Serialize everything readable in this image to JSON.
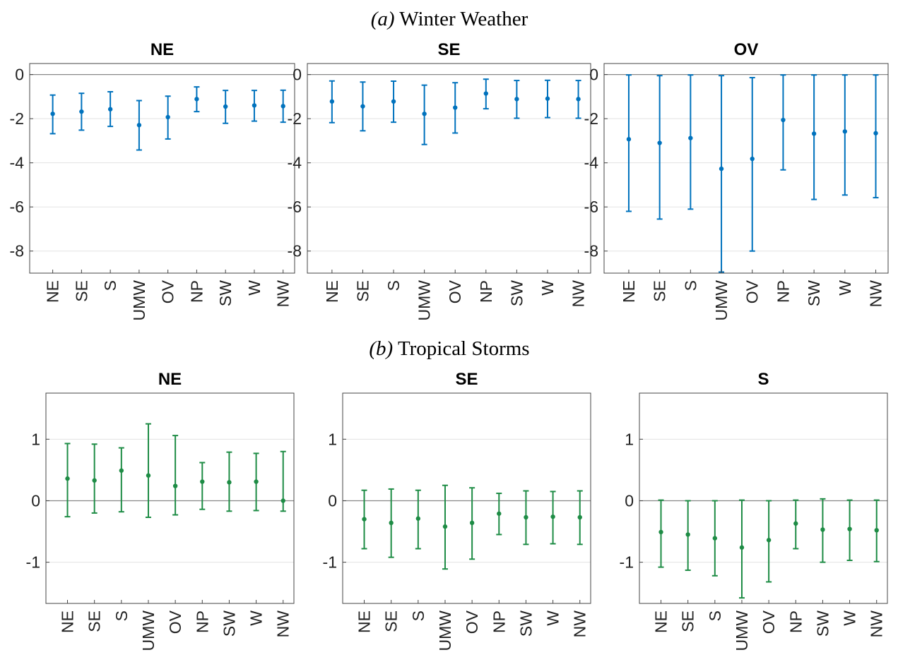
{
  "panels": [
    {
      "title_letter": "(a)",
      "title_text": " Winter Weather"
    },
    {
      "title_letter": "(b)",
      "title_text": " Tropical Storms"
    }
  ],
  "colors": {
    "winter": "#0072BD",
    "tropical": "#1E8C45",
    "grid": "#e3e3e3",
    "zero": "#888888",
    "axis": "#444444"
  },
  "chart_data": [
    {
      "type": "scatter",
      "error_bars": true,
      "group": "Winter Weather",
      "title": "NE",
      "categories": [
        "NE",
        "SE",
        "S",
        "UMW",
        "OV",
        "NP",
        "SW",
        "W",
        "NW"
      ],
      "values": [
        -1.78,
        -1.68,
        -1.57,
        -2.29,
        -1.93,
        -1.11,
        -1.45,
        -1.4,
        -1.43
      ],
      "lower": [
        -2.68,
        -2.52,
        -2.35,
        -3.42,
        -2.92,
        -1.68,
        -2.21,
        -2.11,
        -2.16
      ],
      "upper": [
        -0.93,
        -0.85,
        -0.78,
        -1.18,
        -0.98,
        -0.56,
        -0.72,
        -0.72,
        -0.71
      ],
      "ylim": [
        -9,
        0.5
      ],
      "yticks": [
        0,
        -2,
        -4,
        -6,
        -8
      ],
      "grid": true
    },
    {
      "type": "scatter",
      "error_bars": true,
      "group": "Winter Weather",
      "title": "SE",
      "categories": [
        "NE",
        "SE",
        "S",
        "UMW",
        "OV",
        "NP",
        "SW",
        "W",
        "NW"
      ],
      "values": [
        -1.22,
        -1.44,
        -1.22,
        -1.78,
        -1.5,
        -0.86,
        -1.11,
        -1.09,
        -1.11
      ],
      "lower": [
        -2.18,
        -2.55,
        -2.16,
        -3.17,
        -2.65,
        -1.55,
        -1.98,
        -1.95,
        -1.98
      ],
      "upper": [
        -0.29,
        -0.34,
        -0.3,
        -0.48,
        -0.37,
        -0.21,
        -0.27,
        -0.26,
        -0.27
      ],
      "ylim": [
        -9,
        0.5
      ],
      "yticks": [
        0,
        -2,
        -4,
        -6,
        -8
      ],
      "grid": true
    },
    {
      "type": "scatter",
      "error_bars": true,
      "group": "Winter Weather",
      "title": "OV",
      "categories": [
        "NE",
        "SE",
        "S",
        "UMW",
        "OV",
        "NP",
        "SW",
        "W",
        "NW"
      ],
      "values": [
        -2.93,
        -3.1,
        -2.88,
        -4.27,
        -3.82,
        -2.06,
        -2.68,
        -2.58,
        -2.66
      ],
      "lower": [
        -6.2,
        -6.55,
        -6.1,
        -8.95,
        -8.0,
        -4.32,
        -5.66,
        -5.46,
        -5.58
      ],
      "upper": [
        -0.02,
        -0.05,
        -0.02,
        -0.05,
        -0.14,
        -0.02,
        -0.02,
        -0.02,
        -0.02
      ],
      "ylim": [
        -9,
        0.5
      ],
      "yticks": [
        0,
        -2,
        -4,
        -6,
        -8
      ],
      "grid": true
    },
    {
      "type": "scatter",
      "error_bars": true,
      "group": "Tropical Storms",
      "title": "NE",
      "categories": [
        "NE",
        "SE",
        "S",
        "UMW",
        "OV",
        "NP",
        "SW",
        "W",
        "NW"
      ],
      "values": [
        0.36,
        0.33,
        0.49,
        0.41,
        0.24,
        0.31,
        0.3,
        0.31,
        0.0
      ],
      "lower": [
        -0.26,
        -0.2,
        -0.18,
        -0.27,
        -0.23,
        -0.14,
        -0.17,
        -0.16,
        -0.17
      ],
      "upper": [
        0.93,
        0.92,
        0.86,
        1.25,
        1.06,
        0.62,
        0.79,
        0.77,
        0.8
      ],
      "ylim": [
        -1.67,
        1.75
      ],
      "yticks": [
        1,
        0,
        -1
      ],
      "grid": true
    },
    {
      "type": "scatter",
      "error_bars": true,
      "group": "Tropical Storms",
      "title": "SE",
      "categories": [
        "NE",
        "SE",
        "S",
        "UMW",
        "OV",
        "NP",
        "SW",
        "W",
        "NW"
      ],
      "values": [
        -0.3,
        -0.36,
        -0.29,
        -0.42,
        -0.36,
        -0.21,
        -0.27,
        -0.26,
        -0.27
      ],
      "lower": [
        -0.78,
        -0.92,
        -0.78,
        -1.11,
        -0.95,
        -0.55,
        -0.71,
        -0.7,
        -0.71
      ],
      "upper": [
        0.17,
        0.19,
        0.17,
        0.25,
        0.21,
        0.12,
        0.16,
        0.15,
        0.16
      ],
      "ylim": [
        -1.67,
        1.75
      ],
      "yticks": [
        1,
        0,
        -1
      ],
      "grid": true
    },
    {
      "type": "scatter",
      "error_bars": true,
      "group": "Tropical Storms",
      "title": "S",
      "categories": [
        "NE",
        "SE",
        "S",
        "UMW",
        "OV",
        "NP",
        "SW",
        "W",
        "NW"
      ],
      "values": [
        -0.51,
        -0.55,
        -0.61,
        -0.76,
        -0.64,
        -0.37,
        -0.47,
        -0.46,
        -0.48
      ],
      "lower": [
        -1.08,
        -1.13,
        -1.22,
        -1.58,
        -1.32,
        -0.78,
        -1.0,
        -0.97,
        -0.99
      ],
      "upper": [
        0.01,
        0.0,
        0.0,
        0.01,
        0.0,
        0.01,
        0.03,
        0.01,
        0.01
      ],
      "ylim": [
        -1.67,
        1.75
      ],
      "yticks": [
        1,
        0,
        -1
      ],
      "grid": true
    }
  ]
}
